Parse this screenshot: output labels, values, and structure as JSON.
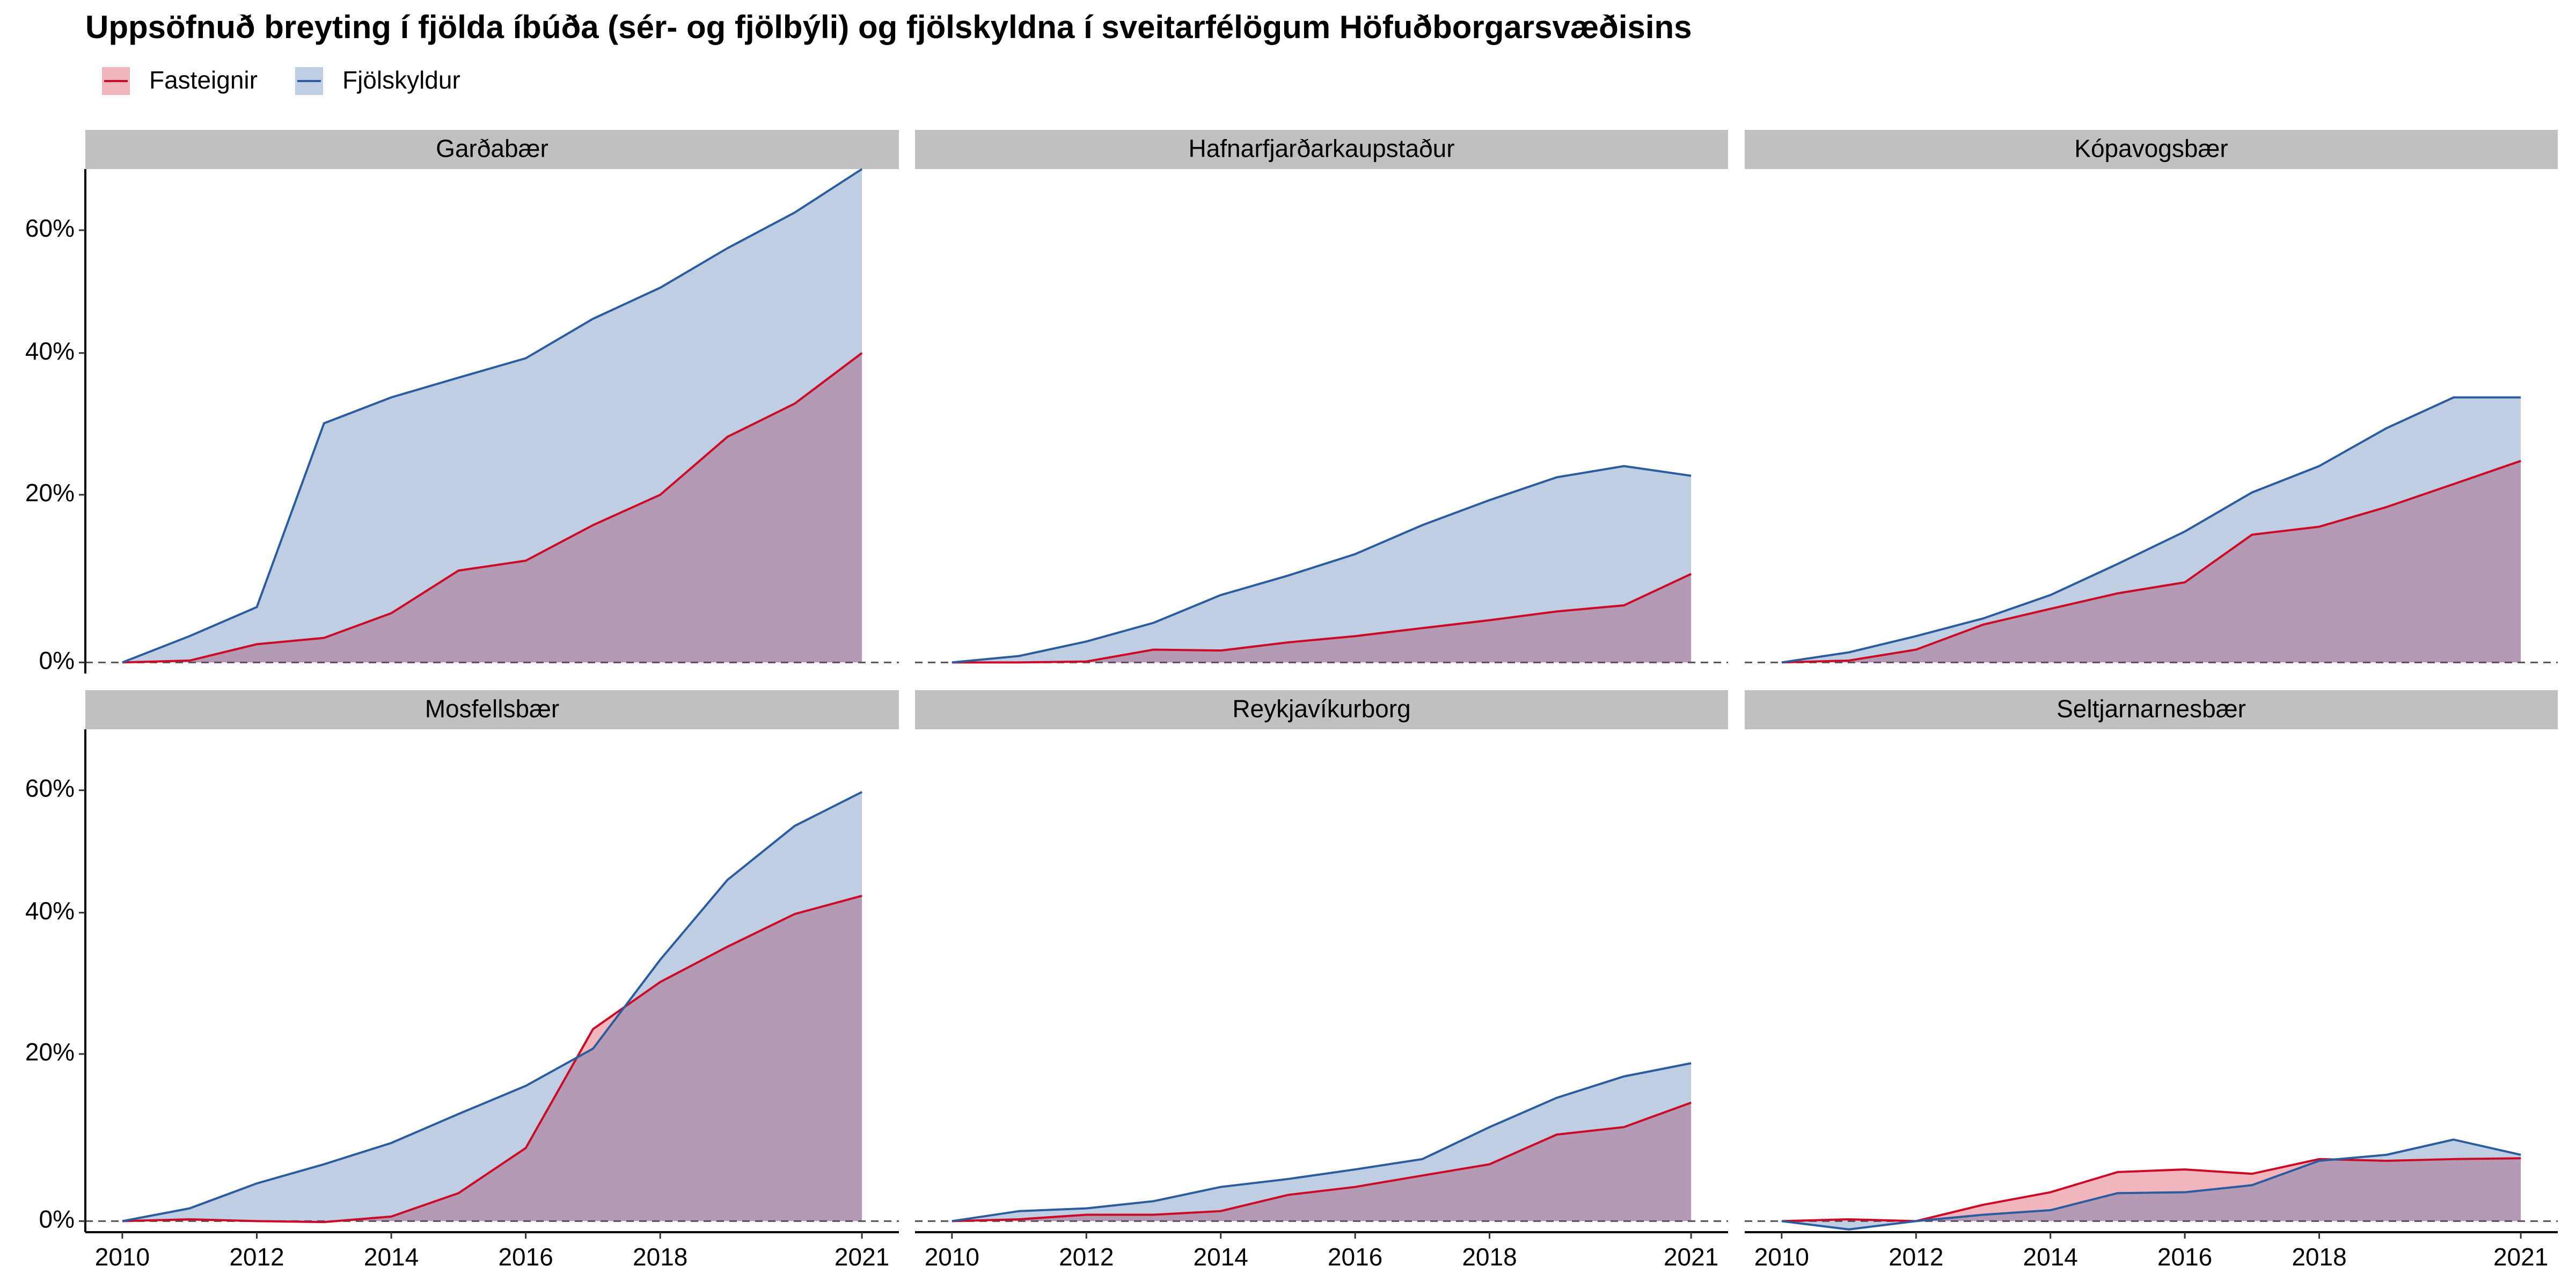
{
  "chart_data": {
    "type": "area",
    "title": "Uppsöfnuð breyting í fjölda íbúða (sér- og fjölbýli) og fjölskyldna í sveitarfélögum Höfuðborgarsvæðisins",
    "series": [
      {
        "name": "Fasteignir",
        "color": "#cc0a26"
      },
      {
        "name": "Fjölskyldur",
        "color": "#2b5c9e"
      }
    ],
    "x": [
      2010,
      2011,
      2012,
      2013,
      2014,
      2015,
      2016,
      2017,
      2018,
      2019,
      2020,
      2021
    ],
    "xlim": [
      2009.45,
      2021.55
    ],
    "xticks": [
      2010,
      2012,
      2014,
      2016,
      2018,
      2021
    ],
    "ylim": [
      -1.2,
      71
    ],
    "yscale": "log1p",
    "yticks": [
      {
        "value": 0,
        "label": "0%"
      },
      {
        "value": 20,
        "label": "20%"
      },
      {
        "value": 40,
        "label": "40%"
      },
      {
        "value": 60,
        "label": "60%"
      }
    ],
    "facets": [
      {
        "title": "Garðabær",
        "values": [
          [
            0,
            0.2,
            2.0,
            2.7,
            5.5,
            10.5,
            11.7,
            16.1,
            20,
            27.8,
            32.5,
            40
          ],
          [
            0,
            2.9,
            6.2,
            29.7,
            33.4,
            36.3,
            39.2,
            45.3,
            50.3,
            56.9,
            63.1,
            71
          ]
        ]
      },
      {
        "title": "Hafnarfjarðarkaupstaður",
        "values": [
          [
            0,
            0,
            0.1,
            1.4,
            1.3,
            2.2,
            2.9,
            3.8,
            4.7,
            5.7,
            6.4,
            10.1
          ],
          [
            0,
            0.7,
            2.3,
            4.4,
            7.6,
            9.9,
            12.5,
            16.1,
            19.3,
            22.3,
            23.8,
            22.5
          ]
        ]
      },
      {
        "title": "Kópavogsbær",
        "values": [
          [
            0,
            0.2,
            1.4,
            4.2,
            6.0,
            7.8,
            9.1,
            14.9,
            15.9,
            18.4,
            21.4,
            24.5
          ],
          [
            0,
            1.1,
            2.9,
            4.9,
            7.6,
            11.3,
            15.3,
            20.3,
            23.8,
            29.0,
            33.4,
            33.4
          ]
        ]
      },
      {
        "title": "Mosfellsbær",
        "values": [
          [
            0,
            0.2,
            0,
            -0.1,
            0.5,
            3.1,
            8.3,
            23.3,
            29.8,
            34.9,
            39.8,
            42.6
          ],
          [
            0,
            1.4,
            4.2,
            6.4,
            8.9,
            12.4,
            15.9,
            20.7,
            33.0,
            45.1,
            53.9,
            59.7
          ]
        ]
      },
      {
        "title": "Reykjavíkurborg",
        "values": [
          [
            0,
            0.2,
            0.7,
            0.7,
            1.1,
            2.9,
            3.8,
            5.1,
            6.4,
            9.9,
            10.8,
            13.8
          ],
          [
            0,
            1.1,
            1.4,
            2.2,
            3.8,
            4.7,
            5.8,
            7.0,
            10.8,
            14.4,
            17.1,
            18.8
          ]
        ]
      },
      {
        "title": "Seltjarnarnesbær",
        "values": [
          [
            0,
            0.2,
            0,
            1.8,
            3.2,
            5.5,
            5.8,
            5.3,
            7.0,
            6.8,
            7.0,
            7.1
          ],
          [
            0,
            -0.9,
            0,
            0.7,
            1.2,
            3.1,
            3.2,
            4.0,
            6.8,
            7.5,
            9.3,
            7.5
          ]
        ]
      }
    ]
  }
}
